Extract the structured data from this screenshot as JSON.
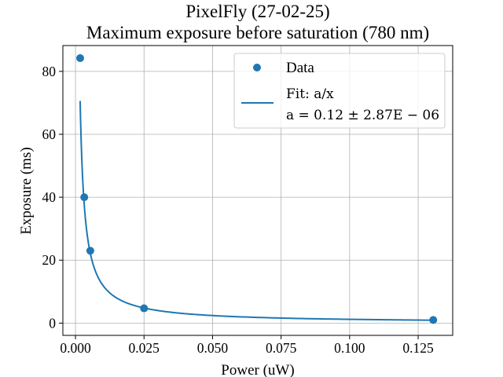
{
  "chart_data": {
    "type": "scatter",
    "title": "PixelFly (27-02-25)",
    "subtitle": "Maximum exposure before saturation (780 nm)",
    "xlabel": "Power (uW)",
    "ylabel": "Exposure (ms)",
    "xlim": [
      -0.0046,
      0.1376
    ],
    "ylim": [
      -3.9,
      88.2
    ],
    "xticks": [
      0.0,
      0.025,
      0.05,
      0.075,
      0.1,
      0.125
    ],
    "xtick_labels": [
      "0.000",
      "0.025",
      "0.050",
      "0.075",
      "0.100",
      "0.125"
    ],
    "yticks": [
      0,
      20,
      40,
      60,
      80
    ],
    "ytick_labels": [
      "0",
      "20",
      "40",
      "60",
      "80"
    ],
    "grid": true,
    "legend_position": "top-right",
    "series": [
      {
        "name": "Data",
        "type": "scatter",
        "color": "#1f77b4",
        "x": [
          0.0017,
          0.0032,
          0.0054,
          0.025,
          0.1305
        ],
        "y": [
          84.2,
          40.0,
          23.0,
          4.7,
          1.0
        ]
      },
      {
        "name": "Fit: a/x",
        "legend_line2": "a = 0.12 ± 2.87E − 06",
        "type": "line",
        "color": "#1f77b4",
        "model": "a/x",
        "a": 0.12,
        "x_range": [
          0.0017,
          0.1305
        ]
      }
    ]
  }
}
